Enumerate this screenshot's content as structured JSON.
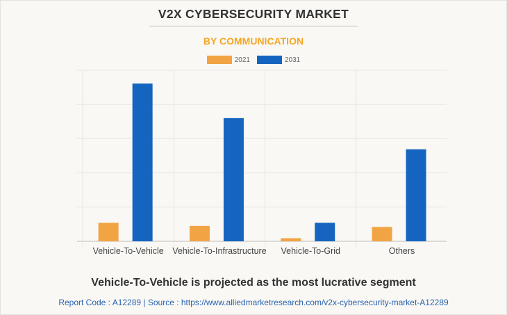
{
  "title": "V2X CYBERSECURITY MARKET",
  "subtitle": "BY COMMUNICATION",
  "headline": "Vehicle-To-Vehicle is projected as the most lucrative segment",
  "footer": "Report Code : A12289  |  Source : https://www.alliedmarketresearch.com/v2x-cybersecurity-market-A12289",
  "colors": {
    "2021": "#f2a445",
    "2031": "#1565c0",
    "title": "#333333",
    "subtitle": "#f5a623"
  },
  "chart_data": {
    "type": "bar",
    "categories": [
      "Vehicle-To-Vehicle",
      "Vehicle-To-Infrastructure",
      "Vehicle-To-Grid",
      "Others"
    ],
    "series": [
      {
        "name": "2021",
        "values": [
          0.54,
          0.45,
          0.09,
          0.42
        ]
      },
      {
        "name": "2031",
        "values": [
          4.61,
          3.6,
          0.54,
          2.69
        ]
      }
    ],
    "ylim": [
      0,
      5
    ],
    "y_tick_labels_shown": false,
    "grid": true,
    "legend": "top-center",
    "xlabel": "",
    "ylabel": ""
  }
}
